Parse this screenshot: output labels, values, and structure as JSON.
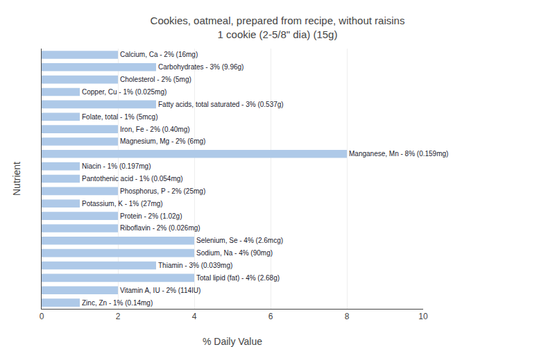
{
  "chart_data": {
    "type": "bar",
    "orientation": "horizontal",
    "title": "Cookies, oatmeal, prepared from recipe, without raisins",
    "subtitle": "1 cookie (2-5/8\" dia) (15g)",
    "x_label": "% Daily Value",
    "y_label": "Nutrient",
    "categories": [
      "Calcium, Ca - 2% (16mg)",
      "Carbohydrates - 3% (9.96g)",
      "Cholesterol - 2% (5mg)",
      "Copper, Cu - 1% (0.025mg)",
      "Fatty acids, total saturated - 3% (0.537g)",
      "Folate, total - 1% (5mcg)",
      "Iron, Fe - 2% (0.40mg)",
      "Magnesium, Mg - 2% (6mg)",
      "Manganese, Mn - 8% (0.159mg)",
      "Niacin - 1% (0.197mg)",
      "Pantothenic acid - 1% (0.054mg)",
      "Phosphorus, P - 2% (25mg)",
      "Potassium, K - 1% (27mg)",
      "Protein - 2% (1.02g)",
      "Riboflavin - 2% (0.026mg)",
      "Selenium, Se - 4% (2.6mcg)",
      "Sodium, Na - 4% (90mg)",
      "Thiamin - 3% (0.039mg)",
      "Total lipid (fat) - 4% (2.68g)",
      "Vitamin A, IU - 2% (114IU)",
      "Zinc, Zn - 1% (0.14mg)"
    ],
    "values": [
      2,
      3,
      2,
      1,
      3,
      1,
      2,
      2,
      8,
      1,
      1,
      2,
      1,
      2,
      2,
      4,
      4,
      3,
      4,
      2,
      1
    ],
    "color": "#aec9e8",
    "xlim": [
      0,
      10
    ],
    "xticks": [
      0,
      2,
      4,
      6,
      8,
      10
    ],
    "grid": true,
    "tick_labels": "x"
  }
}
